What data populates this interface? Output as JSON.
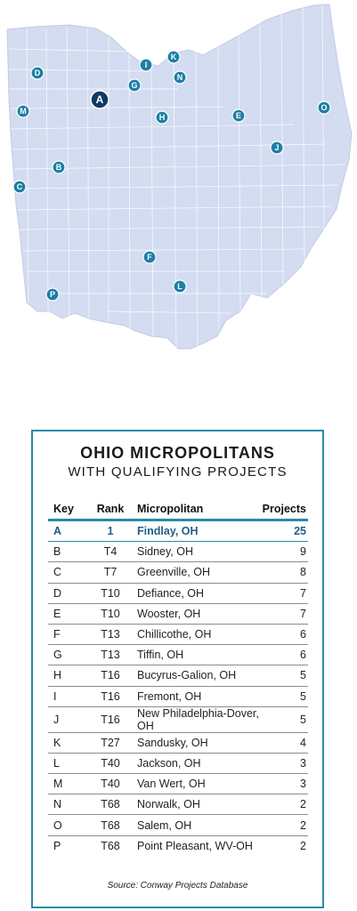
{
  "map": {
    "state": "Ohio",
    "markers": [
      {
        "key": "A",
        "highlight": true
      },
      {
        "key": "B"
      },
      {
        "key": "C"
      },
      {
        "key": "D"
      },
      {
        "key": "E"
      },
      {
        "key": "F"
      },
      {
        "key": "G"
      },
      {
        "key": "H"
      },
      {
        "key": "I"
      },
      {
        "key": "J"
      },
      {
        "key": "K"
      },
      {
        "key": "L"
      },
      {
        "key": "M"
      },
      {
        "key": "N"
      },
      {
        "key": "O"
      },
      {
        "key": "P"
      }
    ],
    "colors": {
      "land": "#d3dcf0",
      "county_lines": "#ffffff",
      "marker": "#1e7ea6",
      "marker_highlight": "#103a66"
    }
  },
  "panel": {
    "title": "OHIO MICROPOLITANS",
    "subtitle": "WITH QUALIFYING PROJECTS",
    "headers": {
      "key": "Key",
      "rank": "Rank",
      "micro": "Micropolitan",
      "projects": "Projects"
    },
    "rows": [
      {
        "key": "A",
        "rank": "1",
        "name": "Findlay, OH",
        "projects": "25",
        "highlight": true
      },
      {
        "key": "B",
        "rank": "T4",
        "name": "Sidney, OH",
        "projects": "9"
      },
      {
        "key": "C",
        "rank": "T7",
        "name": "Greenville, OH",
        "projects": "8"
      },
      {
        "key": "D",
        "rank": "T10",
        "name": "Defiance, OH",
        "projects": "7"
      },
      {
        "key": "E",
        "rank": "T10",
        "name": "Wooster, OH",
        "projects": "7"
      },
      {
        "key": "F",
        "rank": "T13",
        "name": "Chillicothe, OH",
        "projects": "6"
      },
      {
        "key": "G",
        "rank": "T13",
        "name": "Tiffin, OH",
        "projects": "6"
      },
      {
        "key": "H",
        "rank": "T16",
        "name": "Bucyrus-Galion, OH",
        "projects": "5"
      },
      {
        "key": "I",
        "rank": "T16",
        "name": "Fremont, OH",
        "projects": "5"
      },
      {
        "key": "J",
        "rank": "T16",
        "name": "New Philadelphia-Dover, OH",
        "projects": "5"
      },
      {
        "key": "K",
        "rank": "T27",
        "name": "Sandusky, OH",
        "projects": "4"
      },
      {
        "key": "L",
        "rank": "T40",
        "name": "Jackson, OH",
        "projects": "3"
      },
      {
        "key": "M",
        "rank": "T40",
        "name": "Van Wert, OH",
        "projects": "3"
      },
      {
        "key": "N",
        "rank": "T68",
        "name": "Norwalk, OH",
        "projects": "2"
      },
      {
        "key": "O",
        "rank": "T68",
        "name": "Salem, OH",
        "projects": "2"
      },
      {
        "key": "P",
        "rank": "T68",
        "name": "Point Pleasant, WV-OH",
        "projects": "2"
      }
    ],
    "source": "Source: Conway Projects Database"
  }
}
